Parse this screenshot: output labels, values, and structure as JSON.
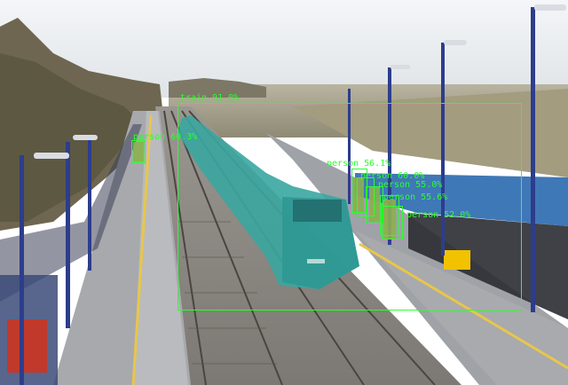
{
  "image": {
    "description_colors": {
      "sky": "#e9edf0",
      "track_ballast": "#8d8a86",
      "platform": "#9c9ea2",
      "train": "#3aa6a0",
      "overlay": "#2bff2b"
    }
  },
  "detections": [
    {
      "label": "train 91.0%"
    },
    {
      "label": "person 60.3%"
    },
    {
      "label": "person 56.1%"
    },
    {
      "label": "person 60.0%"
    },
    {
      "label": "person 55.0%"
    },
    {
      "label": "person 55.6%"
    },
    {
      "label": "person 52.0%"
    }
  ]
}
